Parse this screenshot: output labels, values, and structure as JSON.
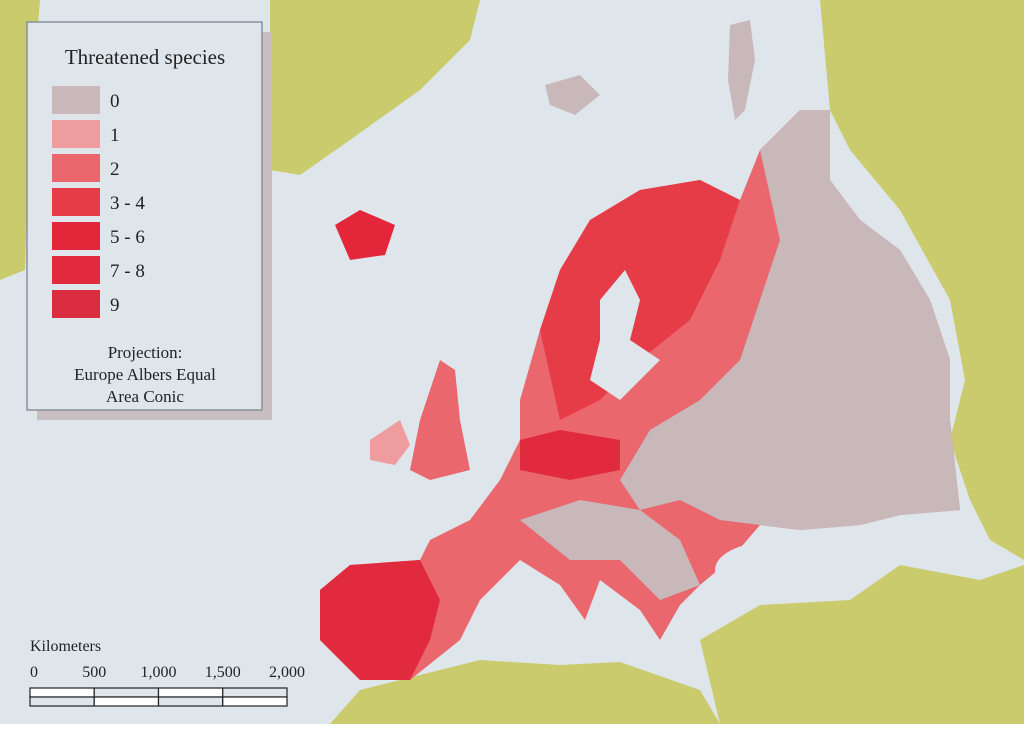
{
  "legend": {
    "title": "Threatened species",
    "items": [
      {
        "label": "0",
        "color": "#c9b8ba"
      },
      {
        "label": "1",
        "color": "#ef9c9e"
      },
      {
        "label": "2",
        "color": "#e9676d"
      },
      {
        "label": "3 - 4",
        "color": "#e63c48"
      },
      {
        "label": "5 - 6",
        "color": "#e4263a"
      },
      {
        "label": "7 - 8",
        "color": "#e12a3d"
      },
      {
        "label": "9",
        "color": "#d92c3e"
      }
    ],
    "projection": [
      "Projection:",
      "Europe Albers Equal",
      "Area Conic"
    ]
  },
  "scale_bar": {
    "unit": "Kilometers",
    "ticks": [
      "0",
      "500",
      "1,000",
      "1,500",
      "2,000"
    ]
  }
}
